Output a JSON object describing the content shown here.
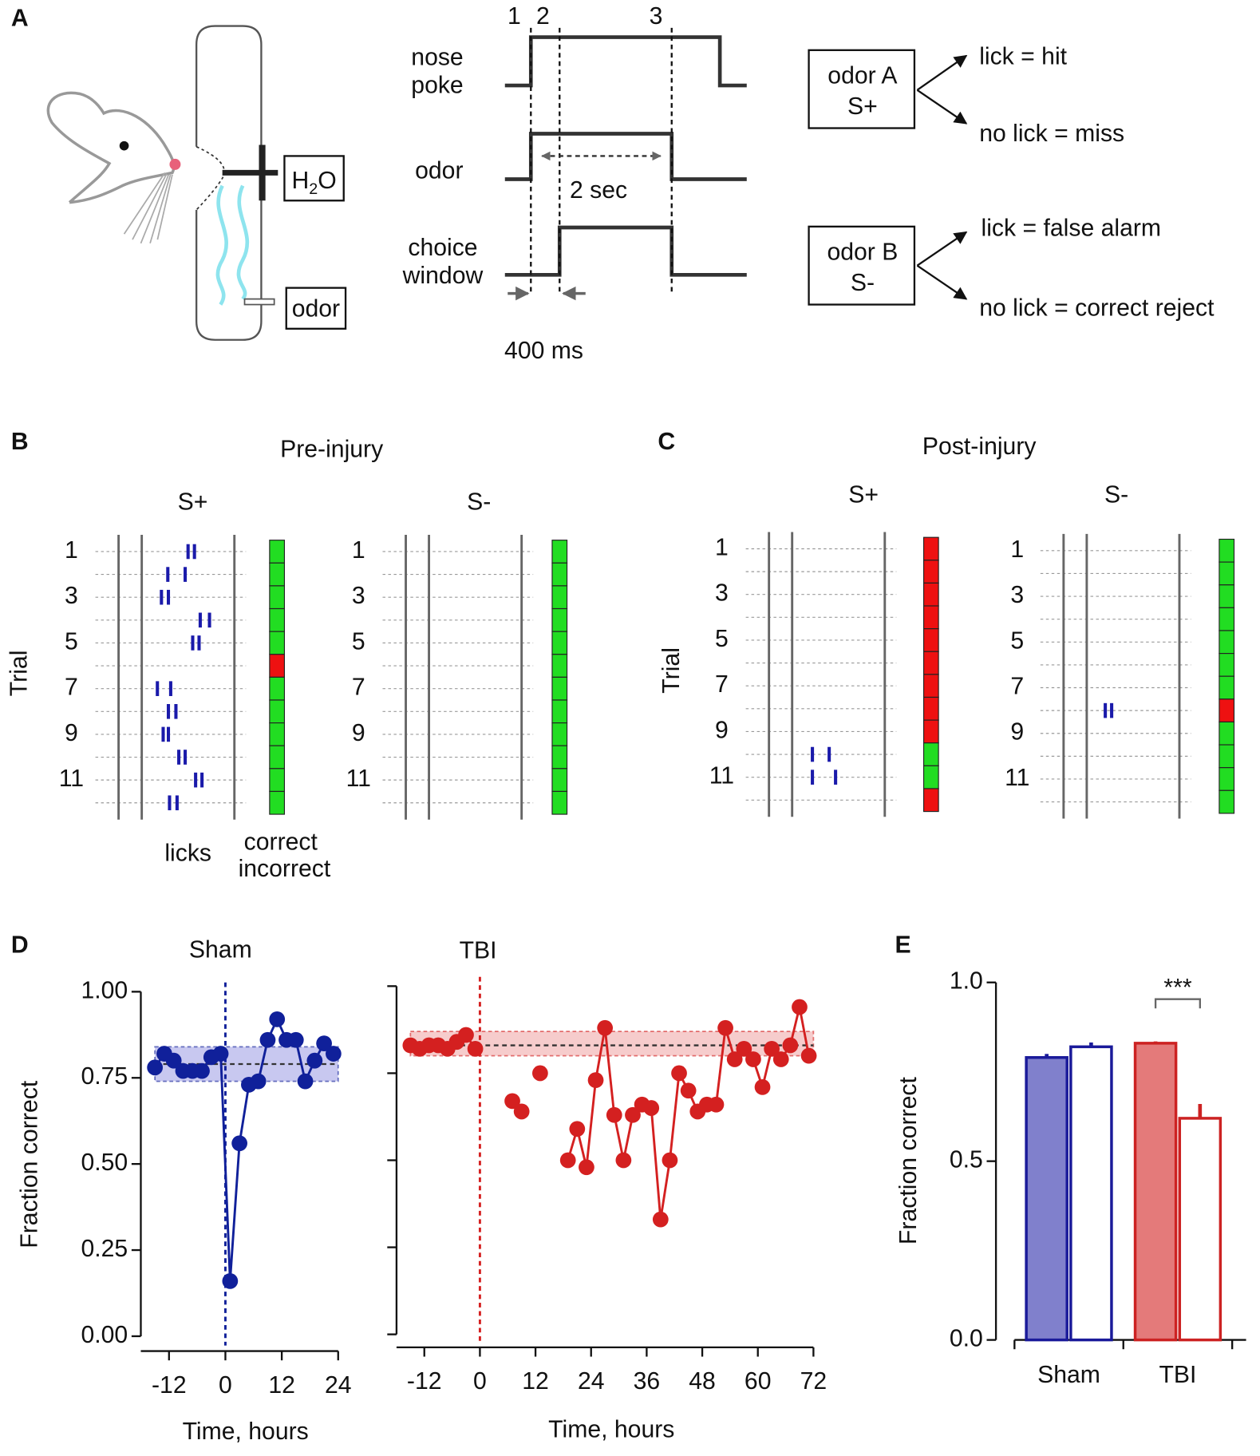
{
  "panels": {
    "a": "A",
    "b": "B",
    "c": "C",
    "d": "D",
    "e": "E"
  },
  "diagram": {
    "water": [
      "H",
      "2",
      "O"
    ],
    "odor_port": "odor",
    "trace_labels": [
      [
        "nose",
        "poke"
      ],
      [
        "odor"
      ],
      [
        "choice",
        "window"
      ]
    ],
    "event_numbers": [
      "1",
      "2",
      "3"
    ],
    "duration": "2 sec",
    "delay": "400 ms",
    "odors": [
      {
        "name": "odor A",
        "type": "S+",
        "outcomes": [
          "lick = hit",
          "no lick = miss"
        ],
        "outcome_colors": [
          "#1aa01a",
          "#d42020"
        ]
      },
      {
        "name": "odor B",
        "type": "S-",
        "outcomes": [
          "lick = false alarm",
          "no lick = correct reject"
        ],
        "outcome_colors": [
          "#d42020",
          "#1aa01a"
        ]
      }
    ]
  },
  "raster": {
    "y_label": "Trial",
    "trial_ticks": [
      1,
      3,
      5,
      7,
      9,
      11
    ],
    "event_times": [
      0,
      400,
      2000
    ],
    "xlim": [
      -400,
      2200
    ],
    "lick_color": "#1a1aaa",
    "correct_color": "#22dd22",
    "incorrect_color": "#ee1111",
    "legend": {
      "licks": "licks",
      "correct": "correct",
      "incorrect": "incorrect"
    },
    "conditions": [
      {
        "title": "Pre-injury",
        "blocks": [
          {
            "title": "S+",
            "outcomes": [
              true,
              true,
              true,
              true,
              true,
              false,
              true,
              true,
              true,
              true,
              true,
              true
            ],
            "licks": [
              [
                1200,
                1310
              ],
              [
                850,
                1150
              ],
              [
                740,
                860
              ],
              [
                1410,
                1570
              ],
              [
                1280,
                1390
              ],
              [],
              [
                670,
                900
              ],
              [
                860,
                990
              ],
              [
                770,
                860
              ],
              [
                1040,
                1150
              ],
              [
                1330,
                1440
              ],
              [
                880,
                1010
              ]
            ]
          },
          {
            "title": "S-",
            "outcomes": [
              true,
              true,
              true,
              true,
              true,
              true,
              true,
              true,
              true,
              true,
              true,
              true
            ],
            "licks": [
              [],
              [],
              [],
              [],
              [],
              [],
              [],
              [],
              [],
              [],
              [],
              []
            ]
          }
        ]
      },
      {
        "title": "Post-injury",
        "blocks": [
          {
            "title": "S+",
            "outcomes": [
              false,
              false,
              false,
              false,
              false,
              false,
              false,
              false,
              false,
              true,
              true,
              false
            ],
            "licks": [
              [],
              [],
              [],
              [],
              [],
              [],
              [],
              [],
              [],
              [
                750,
                1040
              ],
              [
                750,
                1150
              ],
              []
            ]
          },
          {
            "title": "S-",
            "outcomes": [
              true,
              true,
              true,
              true,
              true,
              true,
              true,
              false,
              true,
              true,
              true,
              true
            ],
            "licks": [
              [],
              [],
              [],
              [],
              [],
              [],
              [],
              [
                720,
                830
              ],
              [],
              [],
              [],
              []
            ]
          }
        ]
      }
    ]
  },
  "chart_data": [
    {
      "type": "line",
      "title": "Sham",
      "color": "#10209a",
      "band_color": "#c8c8f0",
      "x": [
        -15,
        -13,
        -11,
        -9,
        -7,
        -5,
        -3,
        -1,
        1,
        3,
        5,
        7,
        9,
        11,
        13,
        15,
        17,
        19,
        21,
        23
      ],
      "values": [
        0.78,
        0.82,
        0.8,
        0.77,
        0.77,
        0.77,
        0.81,
        0.82,
        0.16,
        0.56,
        0.73,
        0.74,
        0.86,
        0.92,
        0.86,
        0.86,
        0.74,
        0.8,
        0.85,
        0.82
      ],
      "xlim": [
        -18,
        24
      ],
      "xticks": [
        -12,
        0,
        12,
        24
      ],
      "ylim": [
        0,
        1
      ],
      "yticks": [
        {
          "value": 0,
          "label": "0.00"
        },
        0.25,
        {
          "value": 0.5,
          "label": "0.50"
        },
        0.75,
        {
          "value": 1,
          "label": "1.00"
        }
      ],
      "x_label": "Time, hours",
      "y_label": "Fraction correct",
      "injury_time": 0,
      "baseline": {
        "mean": 0.79,
        "lower": 0.74,
        "upper": 0.84
      }
    },
    {
      "type": "line",
      "title": "TBI",
      "color": "#d42020",
      "band_color": "#f6cccc",
      "x": [
        -15,
        -13,
        -11,
        -9,
        -7,
        -5,
        -3,
        -1,
        1,
        3,
        5,
        7,
        9,
        11,
        13,
        15,
        17,
        19,
        21,
        23,
        25,
        27,
        29,
        31,
        33,
        35,
        37,
        39,
        41,
        43,
        45,
        47,
        49,
        51,
        53,
        55,
        57,
        59,
        61,
        63,
        65,
        67,
        69,
        71
      ],
      "values": [
        0.83,
        0.82,
        0.83,
        0.83,
        0.82,
        0.84,
        0.86,
        0.82,
        null,
        null,
        null,
        0.67,
        0.64,
        null,
        0.75,
        null,
        null,
        0.5,
        0.59,
        0.48,
        0.73,
        0.88,
        0.63,
        0.5,
        0.63,
        0.66,
        0.65,
        0.33,
        0.5,
        0.75,
        0.7,
        0.64,
        0.66,
        0.66,
        0.88,
        0.79,
        0.82,
        0.79,
        0.71,
        0.82,
        0.79,
        0.83,
        0.94,
        0.8
      ],
      "xlim": [
        -18,
        72
      ],
      "xticks": [
        -12,
        0,
        12,
        24,
        36,
        48,
        60,
        72
      ],
      "ylim": [
        0,
        1
      ],
      "yticks": [
        0,
        0.25,
        0.5,
        0.75,
        1
      ],
      "show_ytick_labels": false,
      "x_label": "Time, hours",
      "injury_time": 0,
      "baseline": {
        "mean": 0.83,
        "lower": 0.8,
        "upper": 0.87
      }
    },
    {
      "type": "bar",
      "categories": [
        "Sham",
        "TBI"
      ],
      "colors": [
        "#1a1a9a",
        "#cc2222"
      ],
      "fill_colors": [
        "#8080cc",
        "#e47a7a"
      ],
      "series": [
        {
          "filled": true,
          "values": [
            0.79,
            0.83
          ],
          "errors": [
            0.01,
            0.005
          ]
        },
        {
          "filled": false,
          "values": [
            0.82,
            0.62
          ],
          "errors": [
            0.012,
            0.04
          ]
        }
      ],
      "ylim": [
        0,
        1
      ],
      "yticks": [
        {
          "value": 0,
          "label": "0.0"
        },
        0.5,
        {
          "value": 1,
          "label": "1.0"
        }
      ],
      "y_label": "Fraction correct",
      "annotation": "***"
    }
  ]
}
